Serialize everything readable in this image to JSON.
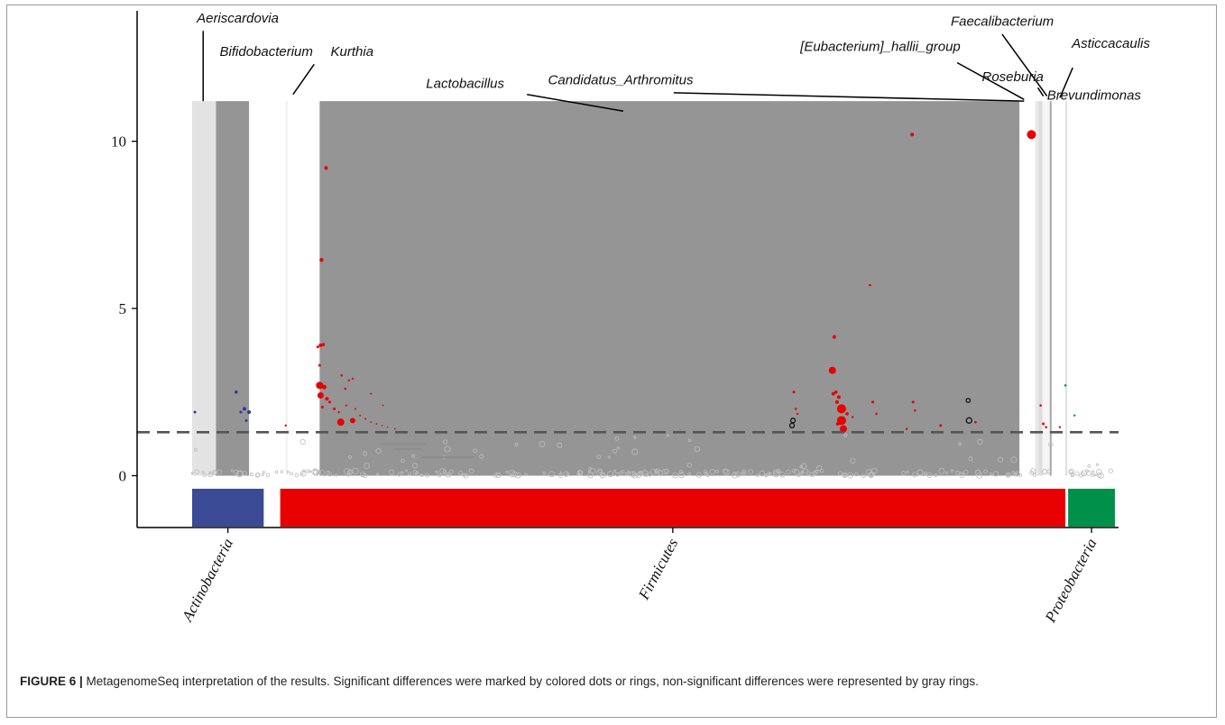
{
  "figure": {
    "caption_label": "FIGURE 6 |",
    "caption_text": " MetagenomeSeq interpretation of the results. Significant differences were marked by colored dots or rings, non-significant differences were represented by gray rings."
  },
  "chart_data": {
    "type": "scatter",
    "x_axis": {
      "range": [
        0,
        100
      ],
      "tick_labels": []
    },
    "y_axis": {
      "range": [
        -1.55,
        13.9
      ],
      "ticks": [
        0,
        5,
        10
      ],
      "tick_labels": [
        "0",
        "5",
        "10"
      ]
    },
    "significance_threshold": 1.3,
    "grid": false,
    "phyla": [
      {
        "name": "Actinobacteria",
        "x_start": 6.0,
        "x_end": 13.8,
        "color": "#3b4a94"
      },
      {
        "name": "Firmicutes",
        "x_start": 15.6,
        "x_end": 101.2,
        "color": "#e80000"
      },
      {
        "name": "Proteobacteria",
        "x_start": 101.5,
        "x_end": 106.6,
        "color": "#00904a"
      }
    ],
    "genus_bands": [
      {
        "name": "Aeriscardovia",
        "x_start": 6.0,
        "x_end": 8.6,
        "height": 11.2,
        "color": "#e3e3e3"
      },
      {
        "name": "Bifidobacterium",
        "x_start": 8.6,
        "x_end": 12.2,
        "height": 11.2,
        "color": "#959595"
      },
      {
        "name": "Kurthia",
        "x_start": 16.2,
        "x_end": 16.4,
        "height": 11.2,
        "color": "#f0f0f0"
      },
      {
        "name": "Lactobacillus",
        "x_start": 19.9,
        "x_end": 96.2,
        "height": 11.2,
        "color": "#959595"
      },
      {
        "name": "Candidatus_Arthromitus",
        "x_start": 96.2,
        "x_end": 97.9,
        "height": 11.2,
        "color": "#ffffff"
      },
      {
        "name": "[Eubacterium]_hallii_group",
        "x_start": 97.9,
        "x_end": 98.3,
        "height": 11.2,
        "color": "#e8e8e8"
      },
      {
        "name": "Roseburia",
        "x_start": 98.3,
        "x_end": 98.7,
        "height": 11.2,
        "color": "#dcdcdc"
      },
      {
        "name": "Faecalibacterium",
        "x_start": 98.7,
        "x_end": 99.5,
        "height": 11.2,
        "color": "#f5f5f5"
      },
      {
        "name": "Brevundimonas",
        "x_start": 99.5,
        "x_end": 99.7,
        "height": 11.2,
        "color": "#a8a8a8"
      },
      {
        "name": "Asticcacaulis",
        "x_start": 101.2,
        "x_end": 101.4,
        "height": 11.2,
        "color": "#e0e0e0"
      }
    ],
    "genus_labels": [
      {
        "text": "Aeriscardovia",
        "x": 6.5,
        "y": 13.55,
        "anchor": "start",
        "pointer": [
          [
            7.2,
            13.3
          ],
          [
            7.2,
            11.2
          ]
        ]
      },
      {
        "text": "Bifidobacterium",
        "x": 9.0,
        "y": 12.55,
        "anchor": "start",
        "pointer": [
          [
            19.3,
            12.3
          ],
          [
            17.0,
            11.4
          ]
        ]
      },
      {
        "text": "Kurthia",
        "x": 21.1,
        "y": 12.55,
        "anchor": "start",
        "pointer": []
      },
      {
        "text": "Lactobacillus",
        "x": 31.5,
        "y": 11.6,
        "anchor": "start",
        "pointer": [
          [
            42.5,
            11.4
          ],
          [
            53.0,
            10.9
          ]
        ]
      },
      {
        "text": "Candidatus_Arthromitus",
        "x": 44.8,
        "y": 11.7,
        "anchor": "start",
        "pointer": [
          [
            58.5,
            11.45
          ],
          [
            96.7,
            11.2
          ]
        ]
      },
      {
        "text": "[Eubacterium]_hallii_group",
        "x": 72.3,
        "y": 12.7,
        "anchor": "start",
        "pointer": [
          [
            89.4,
            12.35
          ],
          [
            96.7,
            11.25
          ]
        ]
      },
      {
        "text": "Faecalibacterium",
        "x": 88.7,
        "y": 13.45,
        "anchor": "start",
        "pointer": [
          [
            94.3,
            13.2
          ],
          [
            99.2,
            11.35
          ]
        ]
      },
      {
        "text": "Asticcacaulis",
        "x": 101.9,
        "y": 12.8,
        "anchor": "start",
        "pointer": [
          [
            102.0,
            12.2
          ],
          [
            100.6,
            11.3
          ]
        ]
      },
      {
        "text": "Roseburia",
        "x": 92.1,
        "y": 11.8,
        "anchor": "start",
        "pointer": [
          [
            98.2,
            11.6
          ],
          [
            98.8,
            11.35
          ]
        ]
      },
      {
        "text": "Brevundimonas",
        "x": 99.2,
        "y": 11.25,
        "anchor": "start",
        "pointer": []
      }
    ],
    "significant_points": [
      {
        "x": 6.3,
        "y": 1.9,
        "size": 1.5,
        "color": "#2e3b94",
        "style": "dot"
      },
      {
        "x": 10.8,
        "y": 2.5,
        "size": 1.8,
        "color": "#2e3b94",
        "style": "dot"
      },
      {
        "x": 11.3,
        "y": 1.9,
        "size": 1.5,
        "color": "#2e3b94",
        "style": "dot"
      },
      {
        "x": 11.7,
        "y": 2.0,
        "size": 2,
        "color": "#2e3b94",
        "style": "dot"
      },
      {
        "x": 12.2,
        "y": 1.9,
        "size": 2,
        "color": "#2e3b94",
        "style": "dot"
      },
      {
        "x": 11.9,
        "y": 1.65,
        "size": 1.5,
        "color": "#2e3b94",
        "style": "dot"
      },
      {
        "x": 16.2,
        "y": 1.5,
        "size": 1.2,
        "color": "#e80000",
        "style": "dot"
      },
      {
        "x": 20.6,
        "y": 9.2,
        "size": 2,
        "color": "#e80000",
        "style": "dot"
      },
      {
        "x": 20.1,
        "y": 6.45,
        "size": 2.2,
        "color": "#e80000",
        "style": "dot"
      },
      {
        "x": 20.0,
        "y": 3.9,
        "size": 2,
        "color": "#e80000",
        "style": "dot"
      },
      {
        "x": 20.3,
        "y": 3.92,
        "size": 1.8,
        "color": "#e80000",
        "style": "dot"
      },
      {
        "x": 19.7,
        "y": 3.85,
        "size": 1.5,
        "color": "#e80000",
        "style": "dot"
      },
      {
        "x": 19.9,
        "y": 3.3,
        "size": 1.5,
        "color": "#e80000",
        "style": "dot"
      },
      {
        "x": 19.9,
        "y": 2.7,
        "size": 4,
        "color": "#e80000",
        "style": "dot"
      },
      {
        "x": 20.4,
        "y": 2.65,
        "size": 2.5,
        "color": "#e80000",
        "style": "dot"
      },
      {
        "x": 20.0,
        "y": 2.4,
        "size": 3.5,
        "color": "#e80000",
        "style": "dot"
      },
      {
        "x": 20.7,
        "y": 2.3,
        "size": 2,
        "color": "#e80000",
        "style": "dot"
      },
      {
        "x": 20.2,
        "y": 2.05,
        "size": 1.5,
        "color": "#e80000",
        "style": "dot"
      },
      {
        "x": 21.0,
        "y": 2.2,
        "size": 1.5,
        "color": "#e80000",
        "style": "dot"
      },
      {
        "x": 21.5,
        "y": 2.0,
        "size": 1.5,
        "color": "#e80000",
        "style": "dot"
      },
      {
        "x": 22.0,
        "y": 1.9,
        "size": 1.2,
        "color": "#e80000",
        "style": "dot"
      },
      {
        "x": 22.2,
        "y": 1.6,
        "size": 4,
        "color": "#e80000",
        "style": "dot"
      },
      {
        "x": 23.5,
        "y": 1.65,
        "size": 3,
        "color": "#e80000",
        "style": "dot"
      },
      {
        "x": 22.3,
        "y": 3.0,
        "size": 1.3,
        "color": "#e80000",
        "style": "dot"
      },
      {
        "x": 22.7,
        "y": 2.6,
        "size": 1.3,
        "color": "#e80000",
        "style": "dot"
      },
      {
        "x": 23.1,
        "y": 2.85,
        "size": 1.2,
        "color": "#e80000",
        "style": "dot"
      },
      {
        "x": 23.5,
        "y": 2.9,
        "size": 1.2,
        "color": "#e80000",
        "style": "dot"
      },
      {
        "x": 22.8,
        "y": 2.1,
        "size": 1.1,
        "color": "#e80000",
        "style": "dot"
      },
      {
        "x": 23.8,
        "y": 2.0,
        "size": 1,
        "color": "#e80000",
        "style": "dot"
      },
      {
        "x": 24.3,
        "y": 1.8,
        "size": 1,
        "color": "#e80000",
        "style": "dot"
      },
      {
        "x": 24.9,
        "y": 1.7,
        "size": 1,
        "color": "#e80000",
        "style": "dot"
      },
      {
        "x": 25.5,
        "y": 1.6,
        "size": 0.9,
        "color": "#e80000",
        "style": "dot"
      },
      {
        "x": 26.1,
        "y": 1.55,
        "size": 0.9,
        "color": "#e80000",
        "style": "dot"
      },
      {
        "x": 26.7,
        "y": 1.5,
        "size": 0.8,
        "color": "#e80000",
        "style": "dot"
      },
      {
        "x": 27.3,
        "y": 1.45,
        "size": 0.8,
        "color": "#e80000",
        "style": "dot"
      },
      {
        "x": 25.5,
        "y": 2.45,
        "size": 1,
        "color": "#e80000",
        "style": "dot"
      },
      {
        "x": 26.8,
        "y": 2.1,
        "size": 0.9,
        "color": "#e80000",
        "style": "dot"
      },
      {
        "x": 28.1,
        "y": 1.4,
        "size": 0.8,
        "color": "#e80000",
        "style": "dot"
      },
      {
        "x": 71.6,
        "y": 2.5,
        "size": 1.5,
        "color": "#e80000",
        "style": "dot"
      },
      {
        "x": 71.8,
        "y": 2.0,
        "size": 1.3,
        "color": "#e80000",
        "style": "dot"
      },
      {
        "x": 72.0,
        "y": 1.85,
        "size": 1.2,
        "color": "#e80000",
        "style": "dot"
      },
      {
        "x": 71.5,
        "y": 1.65,
        "size": 2.5,
        "color": "#111111",
        "style": "ring"
      },
      {
        "x": 71.4,
        "y": 1.5,
        "size": 2.5,
        "color": "#111111",
        "style": "ring"
      },
      {
        "x": 76.0,
        "y": 4.15,
        "size": 2,
        "color": "#e80000",
        "style": "dot"
      },
      {
        "x": 75.8,
        "y": 3.15,
        "size": 4,
        "color": "#e80000",
        "style": "dot"
      },
      {
        "x": 75.9,
        "y": 2.45,
        "size": 2,
        "color": "#e80000",
        "style": "dot"
      },
      {
        "x": 76.2,
        "y": 2.5,
        "size": 1.8,
        "color": "#e80000",
        "style": "dot"
      },
      {
        "x": 76.5,
        "y": 2.35,
        "size": 2,
        "color": "#e80000",
        "style": "dot"
      },
      {
        "x": 76.3,
        "y": 2.2,
        "size": 2,
        "color": "#e80000",
        "style": "dot"
      },
      {
        "x": 76.8,
        "y": 2.0,
        "size": 5,
        "color": "#e80000",
        "style": "dot"
      },
      {
        "x": 76.8,
        "y": 1.65,
        "size": 5,
        "color": "#e80000",
        "style": "dot"
      },
      {
        "x": 77.0,
        "y": 1.4,
        "size": 4,
        "color": "#e80000",
        "style": "dot"
      },
      {
        "x": 76.4,
        "y": 1.55,
        "size": 2,
        "color": "#e80000",
        "style": "dot"
      },
      {
        "x": 77.4,
        "y": 1.85,
        "size": 1.8,
        "color": "#e80000",
        "style": "dot"
      },
      {
        "x": 78.0,
        "y": 1.75,
        "size": 1.2,
        "color": "#e80000",
        "style": "dot"
      },
      {
        "x": 79.9,
        "y": 5.7,
        "size": 1.3,
        "color": "#e80000",
        "style": "dot"
      },
      {
        "x": 80.2,
        "y": 2.2,
        "size": 1.5,
        "color": "#e80000",
        "style": "dot"
      },
      {
        "x": 80.6,
        "y": 1.85,
        "size": 1.3,
        "color": "#e80000",
        "style": "dot"
      },
      {
        "x": 84.5,
        "y": 10.2,
        "size": 2,
        "color": "#e80000",
        "style": "dot"
      },
      {
        "x": 84.6,
        "y": 2.2,
        "size": 1.5,
        "color": "#e80000",
        "style": "dot"
      },
      {
        "x": 84.8,
        "y": 1.95,
        "size": 1.3,
        "color": "#e80000",
        "style": "dot"
      },
      {
        "x": 83.9,
        "y": 1.4,
        "size": 1.2,
        "color": "#e80000",
        "style": "dot"
      },
      {
        "x": 87.6,
        "y": 1.5,
        "size": 1.5,
        "color": "#e80000",
        "style": "dot"
      },
      {
        "x": 90.6,
        "y": 2.25,
        "size": 2.2,
        "color": "#111111",
        "style": "ring"
      },
      {
        "x": 90.7,
        "y": 1.65,
        "size": 3,
        "color": "#111111",
        "style": "ring"
      },
      {
        "x": 91.4,
        "y": 1.6,
        "size": 1.3,
        "color": "#e80000",
        "style": "dot"
      },
      {
        "x": 97.5,
        "y": 10.2,
        "size": 5,
        "color": "#e80000",
        "style": "dot"
      },
      {
        "x": 98.5,
        "y": 2.1,
        "size": 1.3,
        "color": "#e80000",
        "style": "dot"
      },
      {
        "x": 98.8,
        "y": 1.55,
        "size": 1.5,
        "color": "#e80000",
        "style": "dot"
      },
      {
        "x": 99.1,
        "y": 1.45,
        "size": 1.3,
        "color": "#e80000",
        "style": "dot"
      },
      {
        "x": 101.2,
        "y": 2.7,
        "size": 1.3,
        "color": "#00904a",
        "style": "dot"
      },
      {
        "x": 102.2,
        "y": 1.8,
        "size": 1.2,
        "color": "#00904a",
        "style": "dot"
      },
      {
        "x": 100.6,
        "y": 1.45,
        "size": 1.2,
        "color": "#e80000",
        "style": "dot"
      }
    ],
    "nonsignificant_segments": [
      {
        "x_start": 26.5,
        "x_end": 31.5,
        "y": 0.95,
        "color": "#8c8c8c"
      },
      {
        "x_start": 28.0,
        "x_end": 31.0,
        "y": 0.8,
        "color": "#8c8c8c"
      },
      {
        "x_start": 31.0,
        "x_end": 36.8,
        "y": 0.55,
        "color": "#8c8c8c"
      }
    ]
  }
}
